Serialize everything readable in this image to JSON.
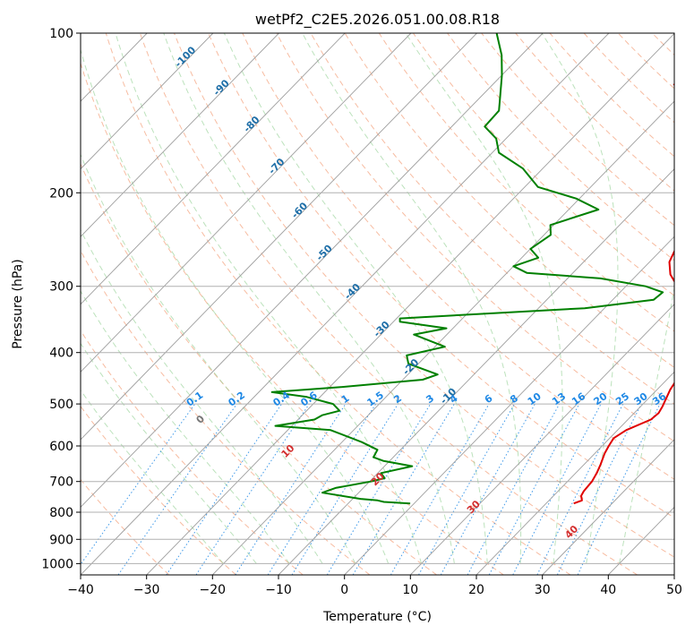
{
  "chart_data": {
    "type": "line",
    "chart_kind": "skew-T log-P",
    "title": "wetPf2_C2E5.2026.051.00.08.R18",
    "xlabel": "Temperature (°C)",
    "ylabel": "Pressure (hPa)",
    "xlim": [
      -40,
      50
    ],
    "ylim": [
      1050,
      100
    ],
    "y_scale": "log",
    "x_ticks": [
      -40,
      -30,
      -20,
      -10,
      0,
      10,
      20,
      30,
      40,
      50
    ],
    "y_ticks": [
      100,
      200,
      300,
      400,
      500,
      600,
      700,
      800,
      900,
      1000
    ],
    "grid": true,
    "isotherms": [
      -100,
      -90,
      -80,
      -70,
      -60,
      -50,
      -40,
      -30,
      -20,
      -10,
      0,
      10,
      20,
      30,
      40,
      50
    ],
    "isotherm_labels": [
      "-100",
      "-90",
      "-80",
      "-70",
      "-60",
      "-50",
      "-40",
      "-30",
      "-20",
      "-10"
    ],
    "mixing_ratio_labels": [
      "0.1",
      "0.2",
      "0.4",
      "0.6",
      "1",
      "1.5",
      "2",
      "3",
      "4",
      "6",
      "8",
      "10",
      "13",
      "16",
      "20",
      "25",
      "30",
      "36"
    ],
    "mixing_ratio_values": [
      0.1,
      0.2,
      0.4,
      0.6,
      1,
      1.5,
      2,
      3,
      4,
      6,
      8,
      10,
      13,
      16,
      20,
      25,
      30,
      36
    ],
    "dry_adiabat_labels": [
      "0",
      "10",
      "20",
      "30",
      "40"
    ],
    "series": [
      {
        "color": "#e00000",
        "points": [
          [
            24.2,
            770
          ],
          [
            25.0,
            760
          ],
          [
            24.2,
            745
          ],
          [
            23.9,
            730
          ],
          [
            23.7,
            700
          ],
          [
            23.2,
            675
          ],
          [
            22.5,
            650
          ],
          [
            21.5,
            620
          ],
          [
            21.0,
            600
          ],
          [
            20.6,
            580
          ],
          [
            21.3,
            560
          ],
          [
            23.5,
            535
          ],
          [
            23.7,
            520
          ],
          [
            23.3,
            505
          ],
          [
            22.0,
            470
          ],
          [
            21.5,
            450
          ],
          [
            20.5,
            430
          ],
          [
            17.0,
            380
          ],
          [
            14.7,
            355
          ],
          [
            10.5,
            320
          ],
          [
            7.8,
            300
          ],
          [
            5.0,
            285
          ],
          [
            3.0,
            270
          ],
          [
            2.0,
            255
          ],
          [
            1.0,
            240
          ],
          [
            0.5,
            225
          ],
          [
            -1.0,
            210
          ],
          [
            -3.2,
            195
          ],
          [
            -6.0,
            180
          ],
          [
            -9.5,
            165
          ],
          [
            -12.5,
            150
          ],
          [
            -16.5,
            138
          ],
          [
            -19.5,
            130
          ],
          [
            -22.5,
            125
          ],
          [
            -21.6,
            120
          ],
          [
            -17.0,
            115
          ],
          [
            -16.2,
            110
          ],
          [
            -16.5,
            105
          ],
          [
            -17.4,
            100
          ]
        ]
      },
      {
        "color": "#008000",
        "points": [
          [
            -0.6,
            770
          ],
          [
            -4.8,
            765
          ],
          [
            -6.0,
            760
          ],
          [
            -8.8,
            755
          ],
          [
            -15.5,
            735
          ],
          [
            -14.2,
            720
          ],
          [
            -9.8,
            700
          ],
          [
            -8.2,
            690
          ],
          [
            -9.5,
            675
          ],
          [
            -5.8,
            655
          ],
          [
            -11.0,
            640
          ],
          [
            -13.0,
            630
          ],
          [
            -13.5,
            610
          ],
          [
            -17.0,
            590
          ],
          [
            -23.5,
            560
          ],
          [
            -32.5,
            550
          ],
          [
            -27.5,
            535
          ],
          [
            -27.0,
            525
          ],
          [
            -25.0,
            515
          ],
          [
            -27.0,
            500
          ],
          [
            -32.0,
            485
          ],
          [
            -38.0,
            475
          ],
          [
            -28.5,
            465
          ],
          [
            -17.0,
            450
          ],
          [
            -15.5,
            440
          ],
          [
            -21.5,
            420
          ],
          [
            -23.0,
            405
          ],
          [
            -18.5,
            390
          ],
          [
            -25.0,
            370
          ],
          [
            -21.0,
            360
          ],
          [
            -29.0,
            350
          ],
          [
            -29.5,
            345
          ],
          [
            -21.0,
            340
          ],
          [
            -3.0,
            330
          ],
          [
            6.2,
            318
          ],
          [
            6.5,
            308
          ],
          [
            3.0,
            300
          ],
          [
            -5.0,
            290
          ],
          [
            -17.0,
            283
          ],
          [
            -20.0,
            275
          ],
          [
            -17.5,
            265
          ],
          [
            -20.0,
            255
          ],
          [
            -19.0,
            240
          ],
          [
            -20.5,
            230
          ],
          [
            -15.5,
            215
          ],
          [
            -20.5,
            205
          ],
          [
            -28.0,
            195
          ],
          [
            -33.0,
            180
          ],
          [
            -39.0,
            168
          ],
          [
            -41.5,
            158
          ],
          [
            -45.0,
            150
          ],
          [
            -45.2,
            140
          ],
          [
            -47.5,
            130
          ],
          [
            -50.0,
            120
          ],
          [
            -53.0,
            110
          ],
          [
            -57.0,
            100
          ]
        ]
      }
    ]
  }
}
